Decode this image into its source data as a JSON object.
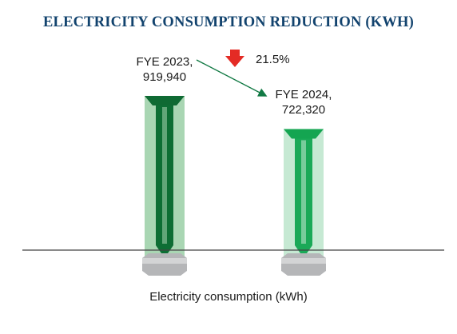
{
  "chart_data": {
    "type": "bar",
    "title": "ELECTRICITY CONSUMPTION REDUCTION (KWH)",
    "xlabel": "Electricity consumption (kWh)",
    "ylabel": "",
    "categories": [
      "FYE 2023,",
      "FYE 2024,"
    ],
    "value_labels": [
      "919,940",
      "722,320"
    ],
    "values": [
      919940,
      722320
    ],
    "ylim": [
      0,
      919940
    ],
    "grid": false,
    "legend": "none",
    "annotation": {
      "text": "21.5%",
      "direction": "decrease",
      "arrow_color": "#e42b25",
      "connector_color": "#137a45"
    },
    "bar_styles": [
      {
        "outer": "#a9d6b3",
        "inner": "#0d6e34",
        "top": "#0f6a33"
      },
      {
        "outer": "#c6e9d3",
        "inner": "#1aa957",
        "top": "#14a551"
      }
    ],
    "colors": {
      "title": "#12436e",
      "baseline": "#444444",
      "base_block": "#b5b6b8"
    }
  }
}
